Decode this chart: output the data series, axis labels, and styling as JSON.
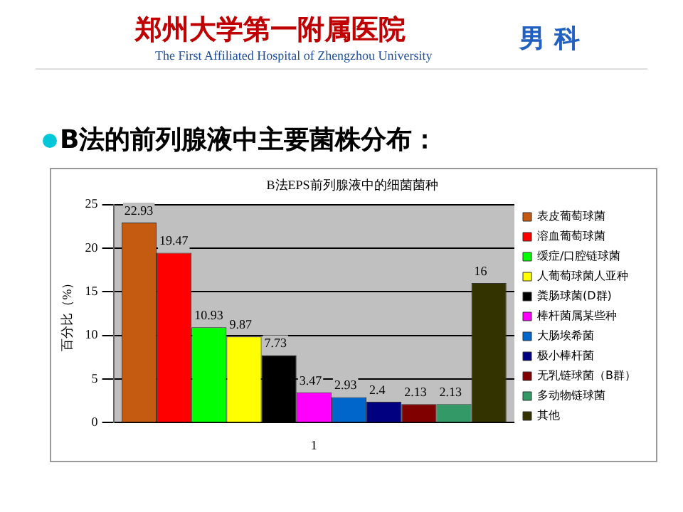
{
  "chart_data": {
    "type": "bar",
    "title": "B法EPS前列腺液中的细菌菌种",
    "ylabel": "百分比（%）",
    "annotations": [
      "郑州大学第一附属医院",
      "The First Affiliated Hospital of Zhengzhou University",
      "男 科",
      "B法的前列腺液中主要菌株分布："
    ],
    "categories": [
      "1"
    ],
    "series": [
      {
        "name": "表皮葡萄球菌",
        "color": "#c55a11",
        "values": [
          22.93
        ]
      },
      {
        "name": "溶血葡萄球菌",
        "color": "#ff0000",
        "values": [
          19.47
        ]
      },
      {
        "name": "缓症/口腔链球菌",
        "color": "#00ff00",
        "values": [
          10.93
        ]
      },
      {
        "name": "人葡萄球菌人亚种",
        "color": "#ffff00",
        "values": [
          9.87
        ]
      },
      {
        "name": "粪肠球菌(D群)",
        "color": "#000000",
        "values": [
          7.73
        ]
      },
      {
        "name": "棒杆菌属某些种",
        "color": "#ff00ff",
        "values": [
          3.47
        ]
      },
      {
        "name": "大肠埃希菌",
        "color": "#0066cc",
        "values": [
          2.93
        ]
      },
      {
        "name": "极小棒杆菌",
        "color": "#000080",
        "values": [
          2.4
        ]
      },
      {
        "name": "无乳链球菌（B群）",
        "color": "#800000",
        "values": [
          2.13
        ]
      },
      {
        "name": "多动物链球菌",
        "color": "#339966",
        "values": [
          2.13
        ]
      },
      {
        "name": "其他",
        "color": "#333300",
        "values": [
          16
        ]
      }
    ],
    "ylim": [
      0,
      25
    ],
    "yticks": [
      0,
      5,
      10,
      15,
      20,
      25
    ],
    "grid": "y",
    "legend": "right",
    "data_labels": true
  }
}
